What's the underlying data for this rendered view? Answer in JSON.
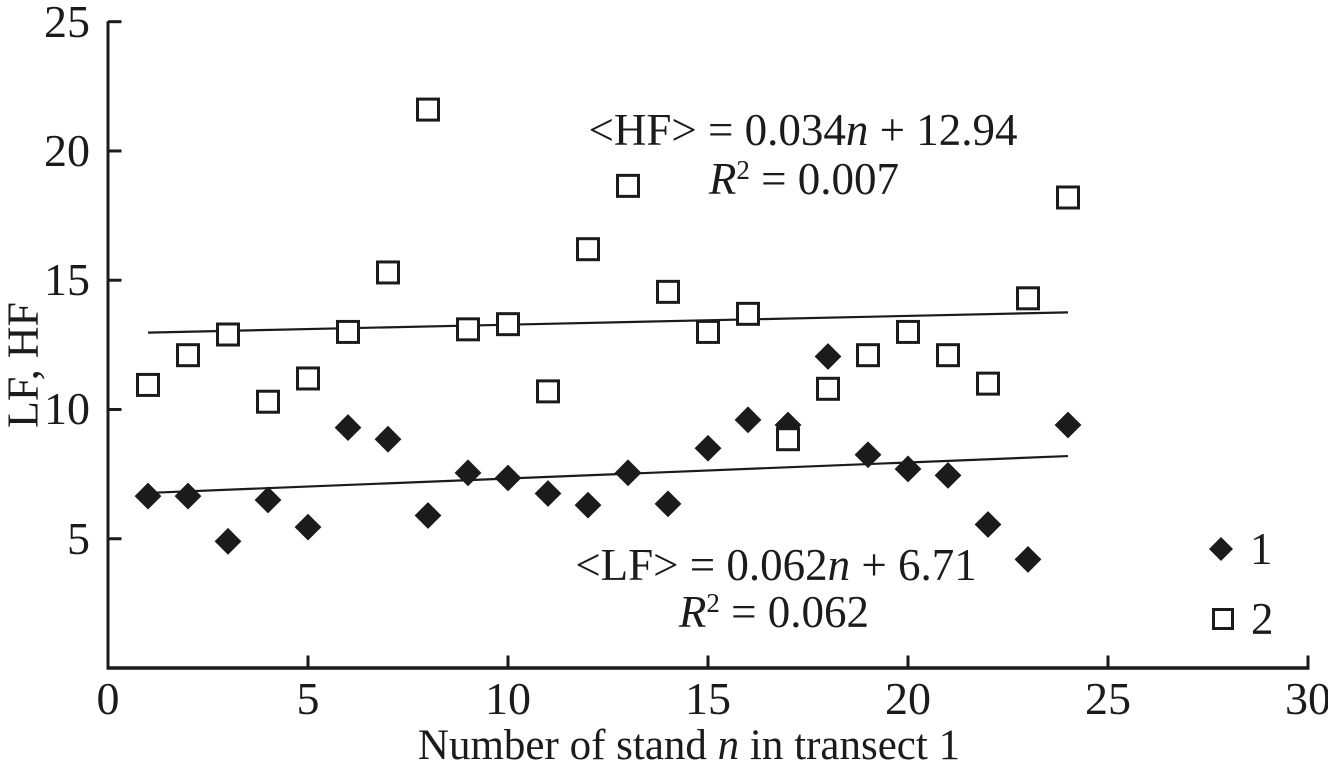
{
  "axes": {
    "x": {
      "title_pre": "Number of stand ",
      "title_var": "n",
      "title_post": " in transect 1",
      "ticks": [
        0,
        5,
        10,
        15,
        20,
        25,
        30
      ],
      "range": [
        0,
        30
      ]
    },
    "y": {
      "title": "LF, HF",
      "ticks": [
        5,
        10,
        15,
        20,
        25
      ],
      "range": [
        0,
        25
      ]
    }
  },
  "annotations": {
    "hf_eq_pre": "<HF> = 0.034",
    "hf_eq_var": "n",
    "hf_eq_post": " + 12.94",
    "hf_r2_var": "R",
    "hf_r2_sup": "2",
    "hf_r2_post": " = 0.007",
    "lf_eq_pre": "<LF> = 0.062",
    "lf_eq_var": "n",
    "lf_eq_post": " + 6.71",
    "lf_r2_var": "R",
    "lf_r2_sup": "2",
    "lf_r2_post": " = 0.062"
  },
  "legend": {
    "items": [
      {
        "marker": "filled-diamond",
        "label": "1"
      },
      {
        "marker": "open-square",
        "label": "2"
      }
    ]
  },
  "colors": {
    "ink": "#1b1b1b",
    "background": "#ffffff"
  },
  "chart_data": {
    "type": "scatter",
    "x": [
      1,
      2,
      3,
      4,
      5,
      6,
      7,
      8,
      9,
      10,
      11,
      12,
      13,
      14,
      15,
      16,
      17,
      18,
      19,
      20,
      21,
      22,
      23,
      24
    ],
    "series": [
      {
        "name": "1",
        "variable": "LF",
        "marker": "filled-diamond",
        "values": [
          6.65,
          6.65,
          4.9,
          6.5,
          5.45,
          9.3,
          8.85,
          5.9,
          7.55,
          7.35,
          6.75,
          6.3,
          7.55,
          6.35,
          8.5,
          9.6,
          9.4,
          12.05,
          8.25,
          7.7,
          7.45,
          5.55,
          4.2,
          9.4
        ]
      },
      {
        "name": "2",
        "variable": "HF",
        "marker": "open-square",
        "values": [
          10.95,
          12.1,
          12.9,
          10.3,
          11.2,
          13.0,
          15.3,
          21.6,
          13.1,
          13.3,
          10.7,
          16.2,
          18.65,
          14.55,
          13.0,
          13.7,
          8.85,
          10.8,
          12.1,
          13.0,
          12.1,
          11.0,
          14.3,
          18.2
        ]
      }
    ],
    "trend_lines": [
      {
        "variable": "LF",
        "equation": "<LF> = 0.062n + 6.71",
        "slope": 0.062,
        "intercept": 6.71,
        "r2": 0.062,
        "x_start": 1,
        "x_end": 24
      },
      {
        "variable": "HF",
        "equation": "<HF> = 0.034n + 12.94",
        "slope": 0.034,
        "intercept": 12.94,
        "r2": 0.007,
        "x_start": 1,
        "x_end": 24
      }
    ],
    "title": "",
    "xlabel": "Number of stand n in transect 1",
    "ylabel": "LF, HF",
    "xlim": [
      0,
      30
    ],
    "ylim": [
      0,
      25
    ],
    "grid": false,
    "legend_position": "bottom-right"
  }
}
